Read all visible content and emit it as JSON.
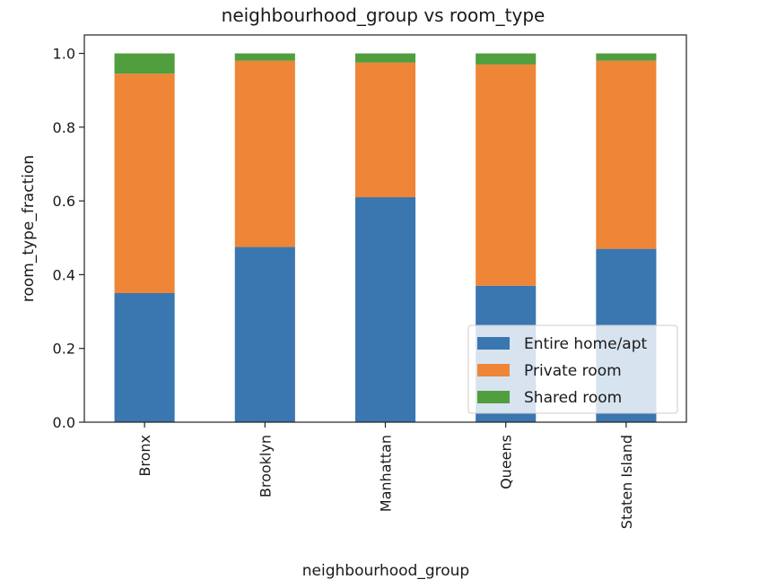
{
  "chart_data": {
    "type": "bar",
    "stacked": true,
    "title": "neighbourhood_group vs room_type",
    "xlabel": "neighbourhood_group",
    "ylabel": "room_type_fraction",
    "categories": [
      "Bronx",
      "Brooklyn",
      "Manhattan",
      "Queens",
      "Staten Island"
    ],
    "series": [
      {
        "name": "Entire home/apt",
        "color": "#3a76af",
        "values": [
          0.35,
          0.475,
          0.61,
          0.37,
          0.47
        ]
      },
      {
        "name": "Private room",
        "color": "#ef8536",
        "values": [
          0.595,
          0.505,
          0.365,
          0.6,
          0.51
        ]
      },
      {
        "name": "Shared room",
        "color": "#519e3e",
        "values": [
          0.055,
          0.02,
          0.025,
          0.03,
          0.02
        ]
      }
    ],
    "ylim": [
      0,
      1.05
    ],
    "yticks": [
      "0.0",
      "0.2",
      "0.4",
      "0.6",
      "0.8",
      "1.0"
    ],
    "grid": false,
    "legend_position": "lower-right"
  }
}
